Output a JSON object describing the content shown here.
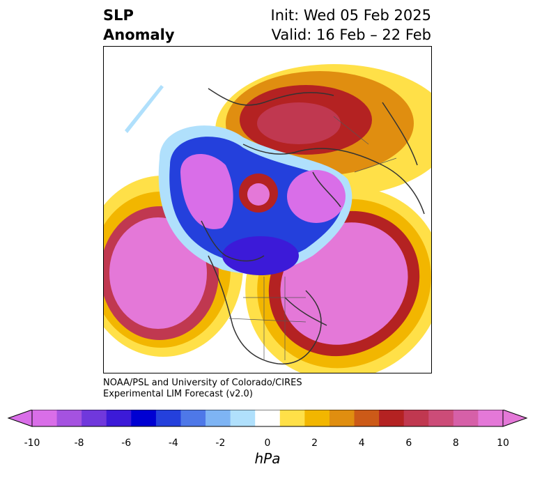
{
  "header": {
    "title_line1": "SLP",
    "title_line2": "Anomaly",
    "init": "Init: Wed 05 Feb 2025",
    "valid": "Valid: 16 Feb – 22 Feb"
  },
  "credit": {
    "line1": "NOAA/PSL and University of Colorado/CIRES",
    "line2": "Experimental LIM Forecast (v2.0)"
  },
  "colorbar": {
    "unit": "hPa",
    "ticks": [
      "-10",
      "-8",
      "-6",
      "-4",
      "-2",
      "0",
      "2",
      "4",
      "6",
      "8",
      "10"
    ],
    "levels": [
      -10,
      -9,
      -8,
      -7,
      -6,
      -5,
      -4,
      -3,
      -2,
      -1,
      1,
      2,
      3,
      4,
      5,
      6,
      7,
      8,
      9,
      10
    ],
    "colors": [
      "#d96ee8",
      "#a552e0",
      "#7038dc",
      "#3c1ad8",
      "#0000d2",
      "#2440dc",
      "#4e78e8",
      "#7eb4f4",
      "#b0e0fc",
      "#ffffff",
      "#ffe048",
      "#f2b600",
      "#e08e10",
      "#cc5a18",
      "#b42222",
      "#c03850",
      "#cc4c78",
      "#d660a8",
      "#e478d8"
    ]
  }
}
